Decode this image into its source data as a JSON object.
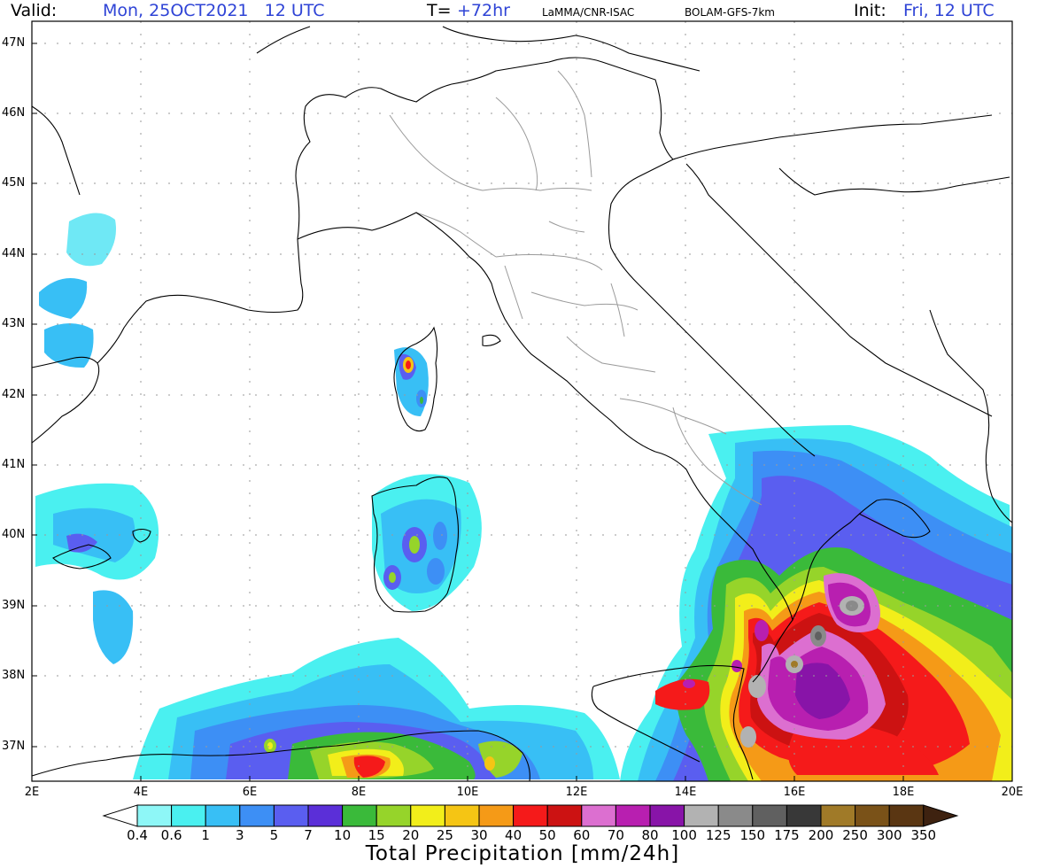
{
  "header": {
    "valid_label": "Valid:",
    "valid_value": "Mon, 25OCT2021   12 UTC",
    "lead_label": "T=",
    "lead_value": "+72hr",
    "producer": "LaMMA/CNR-ISAC",
    "model": "BOLAM-GFS-7km",
    "init_label": "Init:",
    "init_value": "Fri, 12 UTC"
  },
  "map": {
    "lat_labels": [
      "47N",
      "46N",
      "45N",
      "44N",
      "43N",
      "42N",
      "41N",
      "40N",
      "39N",
      "38N",
      "37N"
    ],
    "lon_labels": [
      "2E",
      "4E",
      "6E",
      "8E",
      "10E",
      "12E",
      "14E",
      "16E",
      "18E",
      "20E"
    ],
    "grid": true,
    "colors": {
      "coast": "#000000",
      "regions": "#9a9a9a",
      "gridline": "#9a9a9a"
    }
  },
  "colorbar": {
    "title": "Total Precipitation [mm/24h]",
    "levels": [
      "0.4",
      "0.6",
      "1",
      "3",
      "5",
      "7",
      "10",
      "15",
      "20",
      "25",
      "30",
      "40",
      "50",
      "60",
      "70",
      "80",
      "100",
      "125",
      "150",
      "175",
      "200",
      "250",
      "300",
      "350"
    ],
    "colors": [
      "#8ef7f7",
      "#4af0f0",
      "#38bff5",
      "#3d8ff5",
      "#5a5ef0",
      "#5b2fd8",
      "#3aba3a",
      "#96d42a",
      "#f2ee1a",
      "#f5c514",
      "#f59a17",
      "#f51a1a",
      "#cc1212",
      "#dc6fd0",
      "#b81fb0",
      "#8814a8",
      "#b2b2b2",
      "#8a8a8a",
      "#606060",
      "#383838",
      "#a07a28",
      "#7a5218",
      "#5a3612",
      "#3e2210"
    ],
    "extend": "both"
  }
}
